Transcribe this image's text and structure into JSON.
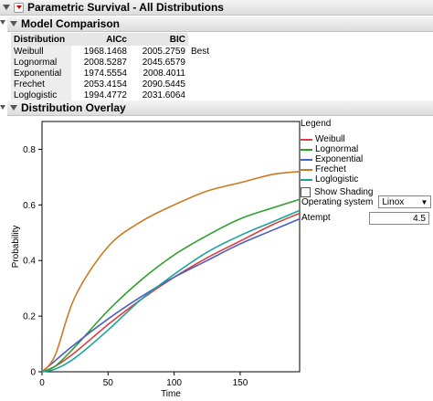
{
  "report": {
    "title": "Parametric Survival - All Distributions"
  },
  "model_comparison": {
    "title": "Model Comparison",
    "columns": [
      "Distribution",
      "AICc",
      "BIC"
    ],
    "rows": [
      {
        "name": "Weibull",
        "aicc": "1968.1468",
        "bic": "2005.2759",
        "note": "Best"
      },
      {
        "name": "Lognormal",
        "aicc": "2008.5287",
        "bic": "2045.6579",
        "note": ""
      },
      {
        "name": "Exponential",
        "aicc": "1974.5554",
        "bic": "2008.4011",
        "note": ""
      },
      {
        "name": "Frechet",
        "aicc": "2053.4154",
        "bic": "2090.5445",
        "note": ""
      },
      {
        "name": "Loglogistic",
        "aicc": "1994.4772",
        "bic": "2031.6064",
        "note": ""
      }
    ]
  },
  "overlay": {
    "title": "Distribution Overlay",
    "legend_title": "Legend",
    "legend": [
      {
        "name": "Weibull",
        "color": "#e03c3c"
      },
      {
        "name": "Lognormal",
        "color": "#2ca02c"
      },
      {
        "name": "Exponential",
        "color": "#4c5fc8"
      },
      {
        "name": "Frechet",
        "color": "#cc7a1f"
      },
      {
        "name": "Loglogistic",
        "color": "#1aa39a"
      }
    ],
    "show_shading_label": "Show Shading",
    "operating_system_label": "Operating system",
    "operating_system_value": "Linox",
    "atempt_label": "Atempt",
    "atempt_value": "4.5"
  },
  "chart_data": {
    "type": "line",
    "xlabel": "Time",
    "ylabel": "Probability",
    "xlim": [
      0,
      195
    ],
    "ylim": [
      0,
      0.9
    ],
    "x_ticks": [
      0,
      50,
      100,
      150
    ],
    "y_ticks": [
      0,
      0.2,
      0.4,
      0.6,
      0.8
    ],
    "grid": false,
    "series": [
      {
        "name": "Weibull",
        "color": "#e03c3c",
        "x": [
          0,
          10,
          25,
          50,
          75,
          100,
          125,
          150,
          175,
          195
        ],
        "y": [
          0,
          0.02,
          0.07,
          0.17,
          0.26,
          0.34,
          0.41,
          0.47,
          0.53,
          0.57
        ]
      },
      {
        "name": "Lognormal",
        "color": "#2ca02c",
        "x": [
          0,
          10,
          25,
          50,
          75,
          100,
          125,
          150,
          175,
          195
        ],
        "y": [
          0,
          0.02,
          0.09,
          0.22,
          0.33,
          0.42,
          0.49,
          0.55,
          0.59,
          0.62
        ]
      },
      {
        "name": "Exponential",
        "color": "#4c5fc8",
        "x": [
          0,
          10,
          25,
          50,
          75,
          100,
          125,
          150,
          175,
          195
        ],
        "y": [
          0,
          0.04,
          0.1,
          0.19,
          0.27,
          0.34,
          0.4,
          0.46,
          0.51,
          0.55
        ]
      },
      {
        "name": "Frechet",
        "color": "#cc7a1f",
        "x": [
          0,
          10,
          25,
          50,
          75,
          100,
          125,
          150,
          175,
          195
        ],
        "y": [
          0,
          0.06,
          0.27,
          0.45,
          0.54,
          0.6,
          0.65,
          0.68,
          0.71,
          0.72
        ]
      },
      {
        "name": "Loglogistic",
        "color": "#1aa39a",
        "x": [
          0,
          10,
          25,
          50,
          75,
          100,
          125,
          150,
          175,
          195
        ],
        "y": [
          0,
          0.01,
          0.05,
          0.15,
          0.26,
          0.35,
          0.43,
          0.49,
          0.54,
          0.58
        ]
      }
    ]
  }
}
